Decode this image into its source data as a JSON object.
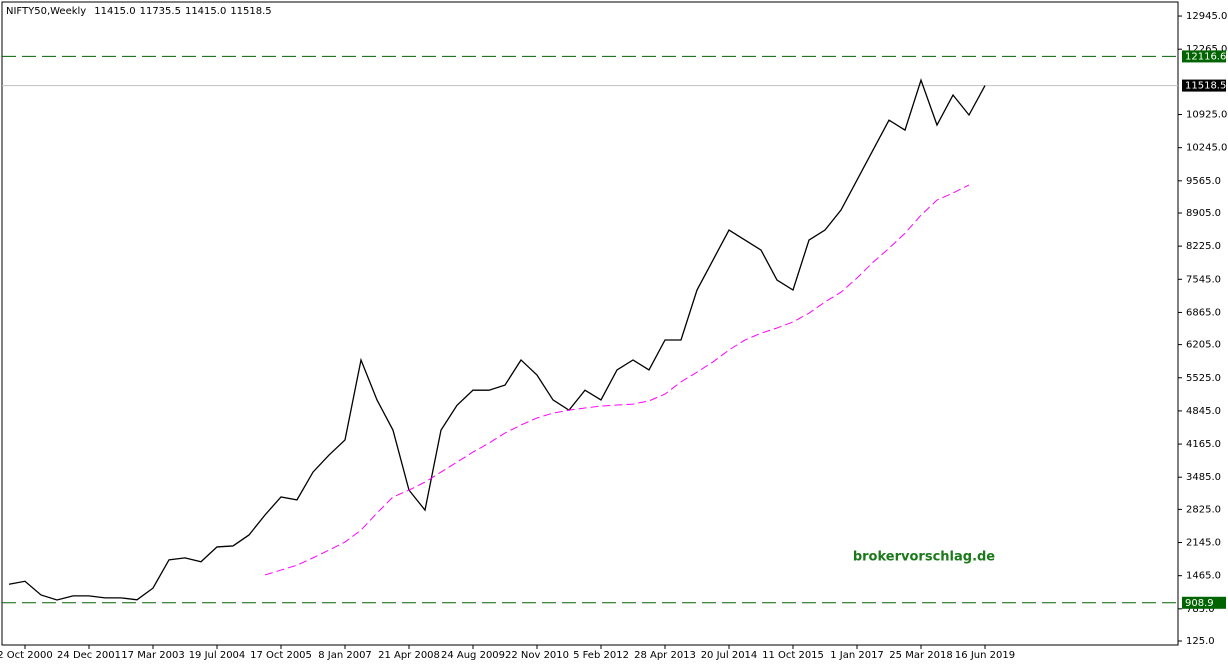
{
  "chart_data": {
    "type": "line",
    "title": "NIFTY50,Weekly",
    "ohlc": [
      {
        "value": 11415.0,
        "label": "11415.0"
      },
      {
        "value": 11735.5,
        "label": "11735.5"
      },
      {
        "value": 11415.0,
        "label": "11415.0"
      },
      {
        "value": 11518.5,
        "label": "11518.5"
      }
    ],
    "watermark": "brokervorschlag.de",
    "watermark_color": "#1a7a1a",
    "categories": [
      null,
      "2 Oct 2000",
      null,
      null,
      null,
      "24 Dec 2001",
      null,
      null,
      null,
      "17 Mar 2003",
      null,
      null,
      null,
      "19 Jul 2004",
      null,
      null,
      null,
      "17 Oct 2005",
      null,
      null,
      null,
      "8 Jan 2007",
      null,
      null,
      null,
      "21 Apr 2008",
      null,
      null,
      null,
      "24 Aug 2009",
      null,
      null,
      null,
      "22 Nov 2010",
      null,
      null,
      null,
      "5 Feb 2012",
      null,
      null,
      null,
      "28 Apr 2013",
      null,
      null,
      null,
      "20 Jul 2014",
      null,
      null,
      null,
      "11 Oct 2015",
      null,
      null,
      null,
      "1 Jan 2017",
      null,
      null,
      null,
      "25 Mar 2018",
      null,
      null,
      null,
      "16 Jun 2019"
    ],
    "series": [
      {
        "color": "#000000",
        "dashed": false,
        "values": [
          1290,
          1350,
          1070,
          966,
          1050,
          1050,
          1010,
          1010,
          970,
          1210,
          1790,
          1830,
          1750,
          2055,
          2075,
          2300,
          2710,
          3080,
          3020,
          3590,
          3940,
          4250,
          5890,
          5070,
          4450,
          3220,
          2810,
          4450,
          4960,
          5270,
          5270,
          5375,
          5890,
          5580,
          5070,
          4860,
          5270,
          5070,
          5685,
          5890,
          5685,
          6300,
          6300,
          7325,
          7940,
          8555,
          8350,
          8145,
          7530,
          7325,
          8350,
          8555,
          8965,
          9580,
          10195,
          10810,
          10605,
          11630,
          10710,
          11325,
          10915,
          11518.5
        ]
      },
      {
        "color": "#ff00ff",
        "dashed": true,
        "values": [
          null,
          null,
          null,
          null,
          null,
          null,
          null,
          null,
          null,
          null,
          null,
          null,
          null,
          null,
          null,
          null,
          1480,
          1580,
          1680,
          1830,
          1990,
          2155,
          2400,
          2750,
          3080,
          3220,
          3385,
          3590,
          3795,
          4000,
          4185,
          4390,
          4555,
          4700,
          4800,
          4860,
          4905,
          4945,
          4965,
          4985,
          5050,
          5190,
          5440,
          5640,
          5850,
          6095,
          6300,
          6440,
          6545,
          6670,
          6850,
          7080,
          7280,
          7570,
          7895,
          8180,
          8490,
          8860,
          9170,
          9315,
          9480,
          null
        ]
      }
    ],
    "levels": [
      {
        "value": 12116.6,
        "color": "#006400",
        "dashed": true,
        "label_bg": "#006400"
      },
      {
        "value": 908.9,
        "color": "#006400",
        "dashed": true,
        "label_bg": "#006400"
      },
      {
        "value": 11518.5,
        "color": "#c0c0c0",
        "dashed": false,
        "label_bg": "#000000"
      }
    ],
    "ylim": [
      43,
      13233
    ],
    "yticks": [
      {
        "value": 12945,
        "label": "12945.0"
      },
      {
        "value": 12265,
        "label": "12265.0"
      },
      {
        "value": 10925,
        "label": "10925.0"
      },
      {
        "value": 10245,
        "label": "10245.0"
      },
      {
        "value": 9565,
        "label": "9565.0"
      },
      {
        "value": 8905,
        "label": "8905.0"
      },
      {
        "value": 8225,
        "label": "8225.0"
      },
      {
        "value": 7545,
        "label": "7545.0"
      },
      {
        "value": 6865,
        "label": "6865.0"
      },
      {
        "value": 6205,
        "label": "6205.0"
      },
      {
        "value": 5525,
        "label": "5525.0"
      },
      {
        "value": 4845,
        "label": "4845.0"
      },
      {
        "value": 4165,
        "label": "4165.0"
      },
      {
        "value": 3485,
        "label": "3485.0"
      },
      {
        "value": 2825,
        "label": "2825.0"
      },
      {
        "value": 2145,
        "label": "2145.0"
      },
      {
        "value": 1465,
        "label": "1465.0"
      },
      {
        "value": 785,
        "label": "785.0"
      },
      {
        "value": 125,
        "label": "125.0"
      }
    ],
    "grid": false
  }
}
